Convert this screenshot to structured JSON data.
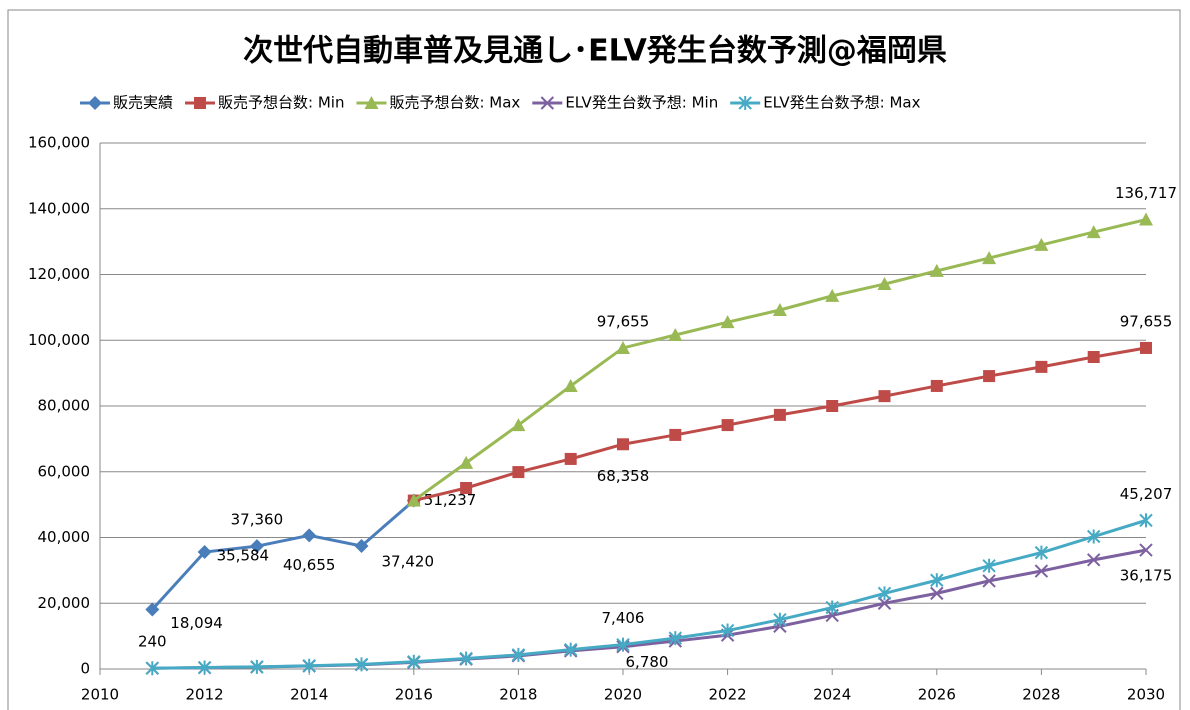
{
  "chart_data": {
    "type": "line",
    "title": "次世代自動車普及見通し･ELV発生台数予測@福岡県",
    "x": [
      2011,
      2012,
      2013,
      2014,
      2015,
      2016,
      2017,
      2018,
      2019,
      2020,
      2021,
      2022,
      2023,
      2024,
      2025,
      2026,
      2027,
      2028,
      2029,
      2030
    ],
    "xlim": [
      2010,
      2030
    ],
    "xticks": [
      2010,
      2012,
      2014,
      2016,
      2018,
      2020,
      2022,
      2024,
      2026,
      2028,
      2030
    ],
    "ylim": [
      0,
      160000
    ],
    "yticks": [
      0,
      {
        "value": 20000,
        "label": "20,000"
      },
      {
        "value": 40000,
        "label": "40,000"
      },
      {
        "value": 60000,
        "label": "60,000"
      },
      {
        "value": 80000,
        "label": "80,000"
      },
      {
        "value": 100000,
        "label": "100,000"
      },
      {
        "value": 120000,
        "label": "120,000"
      },
      {
        "value": 140000,
        "label": "140,000"
      },
      {
        "value": 160000,
        "label": "160,000"
      }
    ],
    "grid": true,
    "legend": "top",
    "series": [
      {
        "name": "販売実績",
        "color": "#4a7ebb",
        "marker": "diamond",
        "values": [
          18094,
          35584,
          37360,
          40655,
          37420,
          51237,
          null,
          null,
          null,
          null,
          null,
          null,
          null,
          null,
          null,
          null,
          null,
          null,
          null,
          null
        ],
        "value_labels": [
          "18,094",
          "35,584",
          "37,360",
          "40,655",
          "37,420",
          "51,237",
          null,
          null,
          null,
          null,
          null,
          null,
          null,
          null,
          null,
          null,
          null,
          null,
          null,
          null
        ]
      },
      {
        "name": "販売予想台数: Min",
        "color": "#be4b48",
        "marker": "square",
        "values": [
          null,
          null,
          null,
          null,
          null,
          51237,
          55060,
          59900,
          63900,
          68358,
          71200,
          74200,
          77300,
          80000,
          83000,
          86100,
          89100,
          91900,
          94900,
          97655
        ],
        "value_labels": [
          null,
          null,
          null,
          null,
          null,
          null,
          null,
          null,
          null,
          "68,358",
          null,
          null,
          null,
          null,
          null,
          null,
          null,
          null,
          null,
          "97,655"
        ]
      },
      {
        "name": "販売予想台数: Max",
        "color": "#98b954",
        "marker": "triangle",
        "values": [
          null,
          null,
          null,
          null,
          null,
          51237,
          62700,
          74200,
          86100,
          97655,
          101600,
          105500,
          109200,
          113500,
          117100,
          121100,
          125000,
          129000,
          132900,
          136717
        ],
        "value_labels": [
          null,
          null,
          null,
          null,
          null,
          null,
          null,
          null,
          null,
          "97,655",
          null,
          null,
          null,
          null,
          null,
          null,
          null,
          null,
          null,
          "136,717"
        ]
      },
      {
        "name": "ELV発生台数予想: Min",
        "color": "#7d60a0",
        "marker": "x",
        "values": [
          240,
          400,
          600,
          900,
          1300,
          2000,
          3000,
          4000,
          5500,
          6780,
          8500,
          10300,
          13000,
          16300,
          20000,
          23000,
          26800,
          29800,
          33200,
          36175
        ],
        "value_labels": [
          null,
          null,
          null,
          null,
          null,
          null,
          null,
          null,
          null,
          "6,780",
          null,
          null,
          null,
          null,
          null,
          null,
          null,
          null,
          null,
          "36,175"
        ]
      },
      {
        "name": "ELV発生台数予想: Max",
        "color": "#46aac5",
        "marker": "star",
        "values": [
          240,
          450,
          650,
          1000,
          1400,
          2200,
          3200,
          4300,
          5900,
          7406,
          9400,
          11700,
          15000,
          18700,
          23000,
          27000,
          31400,
          35400,
          40300,
          45207
        ],
        "value_labels": [
          "240",
          null,
          null,
          null,
          null,
          null,
          null,
          null,
          null,
          "7,406",
          null,
          null,
          null,
          null,
          null,
          null,
          null,
          null,
          null,
          "45,207"
        ]
      }
    ]
  }
}
